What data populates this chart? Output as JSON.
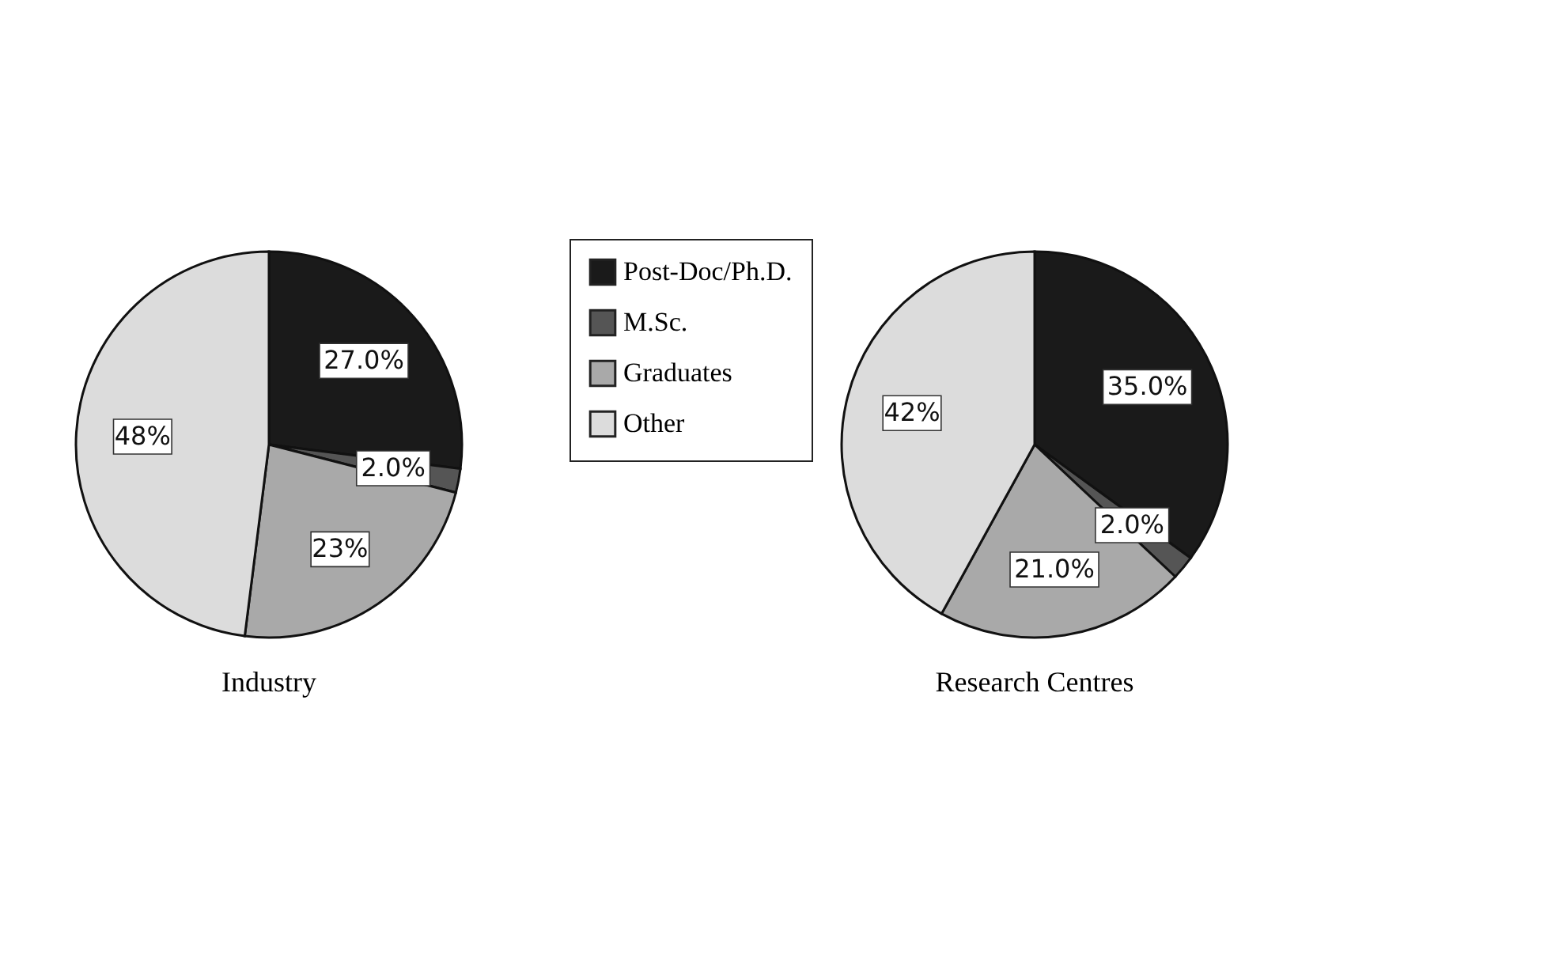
{
  "chart_data": [
    {
      "type": "pie",
      "title": "Industry",
      "categories": [
        "Post-Doc/Ph.D.",
        "M.Sc.",
        "Graduates",
        "Other"
      ],
      "values": [
        27,
        2,
        23,
        48
      ],
      "colors": [
        "#1a1a1a",
        "#555555",
        "#a9a9a9",
        "#dcdcdc"
      ],
      "value_labels": [
        "27.0%",
        "2.0%",
        "23%",
        "48%"
      ],
      "legend": "right"
    },
    {
      "type": "pie",
      "title": "Research Centres",
      "categories": [
        null,
        null,
        null,
        null
      ],
      "values": [
        35,
        2,
        21,
        42
      ],
      "colors": [
        "#1a1a1a",
        "#555555",
        "#a9a9a9",
        "#dcdcdc"
      ],
      "value_labels": [
        "35.0%",
        "2.0%",
        "21.0%",
        "42%"
      ],
      "legend": false
    }
  ]
}
